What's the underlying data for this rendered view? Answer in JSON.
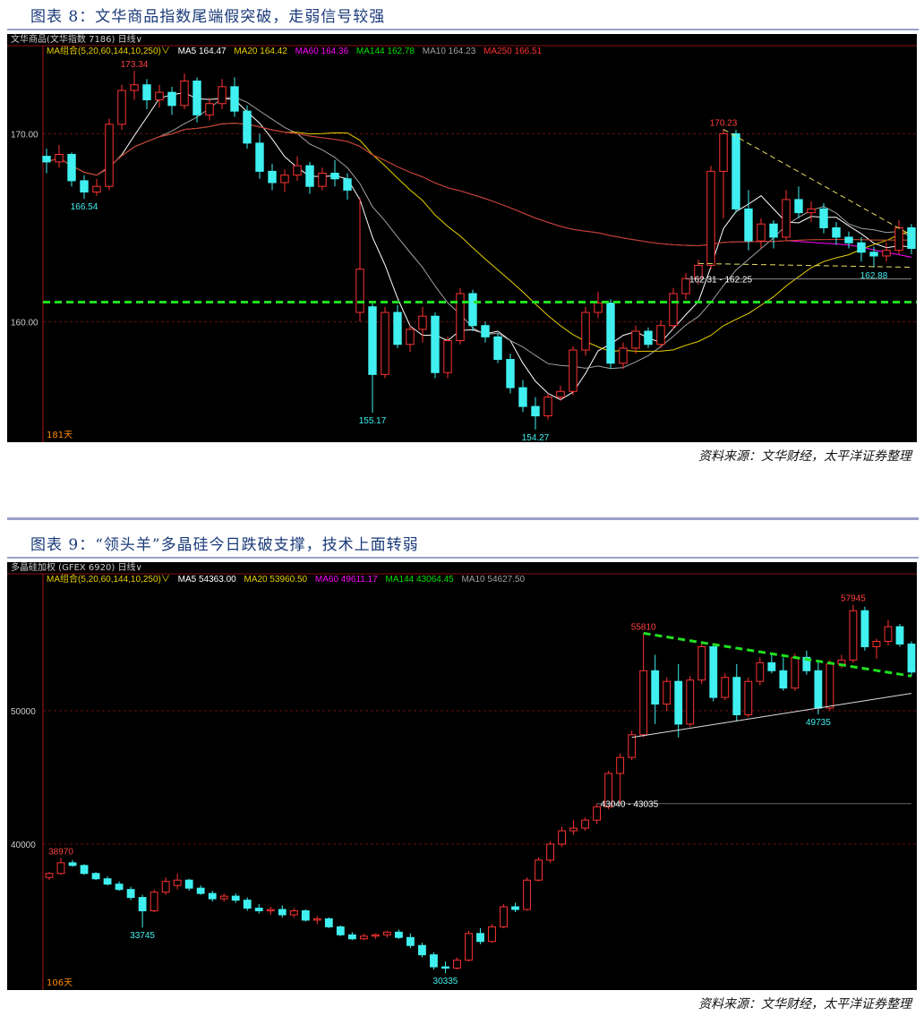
{
  "figures": [
    {
      "title": "图表 8：文华商品指数尾端假突破，走弱信号较强",
      "header": "文华商品(文华指数 7186)  日线∨",
      "ma_combo": "MA组合(5,20,60,144,10,250)∨",
      "ma_values": [
        {
          "label": "MA5 164.47",
          "color": "#ffffff"
        },
        {
          "label": "MA20 164.42",
          "color": "#e8d000"
        },
        {
          "label": "MA60 164.36",
          "color": "#ff00ff"
        },
        {
          "label": "MA144 162.78",
          "color": "#00e000"
        },
        {
          "label": "MA10 164.23",
          "color": "#a0a0a0"
        },
        {
          "label": "MA250 166.51",
          "color": "#ff3030"
        }
      ],
      "days_label": "181天",
      "source": "资料来源：文华财经，太平洋证券整理"
    },
    {
      "title": "图表 9：“领头羊”多晶硅今日跌破支撑，技术上面转弱",
      "header": "多晶硅加权 (GFEX 6920)  日线∨",
      "ma_combo": "MA组合(5,20,60,144,10,250)∨",
      "ma_values": [
        {
          "label": "MA5 54363.00",
          "color": "#ffffff"
        },
        {
          "label": "MA20 53960.50",
          "color": "#e8d000"
        },
        {
          "label": "MA60 49611.17",
          "color": "#ff00ff"
        },
        {
          "label": "MA144 43064.45",
          "color": "#00e000"
        },
        {
          "label": "MA10 54627.50",
          "color": "#a0a0a0"
        }
      ],
      "days_label": "106天",
      "source": "资料来源：文华财经，太平洋证券整理"
    }
  ],
  "chart_data": [
    {
      "type": "candlestick",
      "ylim": [
        153.6,
        175.3
      ],
      "yticks": [
        {
          "value": 170,
          "label": "170.00"
        },
        {
          "value": 160,
          "label": "160.00"
        }
      ],
      "up_color": "#ff3232",
      "down_color": "#40f0f0",
      "ohlc": [
        [
          168.8,
          169.2,
          167.9,
          168.5
        ],
        [
          168.5,
          169.4,
          168.2,
          168.9
        ],
        [
          168.9,
          169.0,
          167.2,
          167.5
        ],
        [
          167.5,
          167.8,
          166.54,
          166.9
        ],
        [
          166.9,
          167.6,
          166.7,
          167.2
        ],
        [
          167.2,
          170.8,
          167.0,
          170.5
        ],
        [
          170.5,
          172.6,
          170.2,
          172.3
        ],
        [
          172.3,
          173.34,
          171.8,
          172.6
        ],
        [
          172.6,
          172.9,
          171.3,
          171.8
        ],
        [
          171.8,
          172.6,
          171.4,
          172.2
        ],
        [
          172.2,
          172.5,
          171.0,
          171.5
        ],
        [
          171.5,
          173.2,
          171.3,
          172.8
        ],
        [
          172.8,
          173.0,
          170.6,
          171.0
        ],
        [
          171.0,
          171.9,
          170.7,
          171.6
        ],
        [
          171.6,
          172.9,
          171.3,
          172.5
        ],
        [
          172.5,
          173.0,
          170.9,
          171.2
        ],
        [
          171.2,
          171.5,
          169.2,
          169.5
        ],
        [
          169.5,
          170.0,
          167.6,
          168.0
        ],
        [
          168.0,
          168.4,
          167.0,
          167.4
        ],
        [
          167.4,
          168.1,
          166.9,
          167.8
        ],
        [
          167.8,
          168.8,
          167.5,
          168.3
        ],
        [
          168.3,
          168.5,
          166.8,
          167.2
        ],
        [
          167.2,
          168.2,
          167.0,
          167.9
        ],
        [
          167.9,
          168.6,
          167.2,
          167.6
        ],
        [
          167.6,
          167.9,
          166.5,
          167.0
        ],
        [
          160.5,
          166.6,
          160.0,
          162.8
        ],
        [
          160.8,
          161.0,
          155.17,
          157.2
        ],
        [
          157.2,
          160.8,
          157.0,
          160.5
        ],
        [
          160.5,
          160.9,
          158.6,
          158.8
        ],
        [
          158.8,
          159.8,
          158.4,
          159.6
        ],
        [
          159.6,
          160.8,
          158.9,
          160.3
        ],
        [
          160.3,
          160.5,
          157.0,
          157.3
        ],
        [
          157.3,
          159.2,
          157.0,
          159.0
        ],
        [
          159.0,
          161.8,
          158.8,
          161.5
        ],
        [
          161.5,
          161.7,
          159.5,
          159.8
        ],
        [
          159.8,
          160.0,
          158.9,
          159.2
        ],
        [
          159.2,
          159.4,
          157.8,
          158.0
        ],
        [
          158.0,
          158.3,
          156.2,
          156.5
        ],
        [
          156.5,
          156.9,
          155.2,
          155.5
        ],
        [
          155.5,
          156.0,
          154.27,
          155.0
        ],
        [
          155.0,
          156.2,
          154.8,
          156.0
        ],
        [
          156.0,
          156.6,
          155.8,
          156.3
        ],
        [
          156.3,
          158.7,
          156.1,
          158.5
        ],
        [
          158.5,
          160.8,
          158.2,
          160.5
        ],
        [
          160.5,
          161.6,
          160.2,
          161.0
        ],
        [
          161.0,
          161.2,
          157.5,
          157.8
        ],
        [
          157.8,
          158.9,
          157.5,
          158.6
        ],
        [
          158.6,
          159.8,
          158.3,
          159.5
        ],
        [
          159.5,
          159.7,
          158.6,
          158.8
        ],
        [
          158.8,
          160.1,
          158.6,
          159.8
        ],
        [
          159.8,
          161.8,
          159.6,
          161.5
        ],
        [
          161.5,
          162.6,
          161.2,
          162.3
        ],
        [
          162.3,
          163.3,
          162.0,
          163.0
        ],
        [
          163.0,
          168.3,
          162.8,
          168.0
        ],
        [
          168.0,
          170.23,
          165.5,
          170.0
        ],
        [
          170.0,
          170.2,
          165.8,
          166.0
        ],
        [
          166.0,
          167.0,
          163.8,
          164.3
        ],
        [
          164.3,
          165.5,
          163.9,
          165.2
        ],
        [
          165.2,
          165.4,
          163.9,
          164.5
        ],
        [
          164.5,
          167.0,
          164.3,
          166.5
        ],
        [
          166.5,
          167.2,
          165.5,
          165.8
        ],
        [
          165.8,
          166.4,
          165.3,
          166.0
        ],
        [
          166.0,
          166.3,
          164.7,
          165.0
        ],
        [
          165.0,
          165.3,
          164.1,
          164.5
        ],
        [
          164.5,
          164.8,
          163.9,
          164.2
        ],
        [
          164.2,
          164.5,
          163.2,
          163.7
        ],
        [
          163.7,
          164.0,
          162.88,
          163.5
        ],
        [
          163.5,
          164.2,
          163.2,
          163.8
        ],
        [
          163.8,
          165.4,
          163.6,
          165.0
        ],
        [
          165.0,
          165.2,
          163.6,
          163.9
        ]
      ],
      "annotations": [
        {
          "text": "173.34",
          "at": 7,
          "value": 173.34,
          "pos": "above",
          "color": "#ff4040"
        },
        {
          "text": "166.54",
          "at": 3,
          "value": 166.54,
          "pos": "below",
          "color": "#40f0f0"
        },
        {
          "text": "155.17",
          "at": 26,
          "value": 155.17,
          "pos": "below",
          "color": "#40f0f0"
        },
        {
          "text": "154.27",
          "at": 39,
          "value": 154.27,
          "pos": "below",
          "color": "#40f0f0"
        },
        {
          "text": "170.23",
          "at": 54,
          "value": 170.23,
          "pos": "above",
          "color": "#ff4040"
        },
        {
          "text": "162.88",
          "at": 66,
          "value": 162.88,
          "pos": "below",
          "color": "#40f0f0"
        },
        {
          "text": "162.31 - 162.25",
          "at": 51,
          "value": 162.28,
          "pos": "right",
          "color": "#ffffff"
        }
      ],
      "lines": [
        {
          "from": [
            0,
            161.05
          ],
          "to": [
            69,
            161.05
          ],
          "color": "#20e020",
          "style": "dashed-thick"
        },
        {
          "from": [
            54,
            170.23
          ],
          "to": [
            69,
            164.6
          ],
          "color": "#e8e060",
          "style": "dashed"
        },
        {
          "from": [
            52,
            163.1
          ],
          "to": [
            69,
            162.9
          ],
          "color": "#e8e060",
          "style": "dashed"
        },
        {
          "from": [
            51,
            162.28
          ],
          "to": [
            69,
            162.28
          ],
          "color": "#888888",
          "style": "solid"
        }
      ],
      "moving_averages": [
        {
          "period": 5,
          "color": "#ffffff"
        },
        {
          "period": 10,
          "color": "#a0a0a0"
        },
        {
          "period": 20,
          "color": "#e8d000"
        },
        {
          "period": 60,
          "color": "#ff00ff"
        },
        {
          "period": 144,
          "color": "#00c000"
        },
        {
          "period": 250,
          "color": "#d03030"
        }
      ]
    },
    {
      "type": "candlestick",
      "ylim": [
        29060,
        61140
      ],
      "yticks": [
        {
          "value": 50000,
          "label": "50000"
        },
        {
          "value": 40000,
          "label": "40000"
        }
      ],
      "up_color": "#ff3232",
      "down_color": "#40f0f0",
      "ohlc": [
        [
          37500,
          37900,
          37300,
          37800
        ],
        [
          37800,
          38970,
          37700,
          38600
        ],
        [
          38600,
          38800,
          38300,
          38400
        ],
        [
          38400,
          38500,
          37700,
          37800
        ],
        [
          37800,
          37900,
          37300,
          37400
        ],
        [
          37400,
          37600,
          36900,
          37000
        ],
        [
          37000,
          37200,
          36500,
          36600
        ],
        [
          36600,
          36800,
          35800,
          36000
        ],
        [
          36000,
          36200,
          33745,
          35000
        ],
        [
          35000,
          36600,
          34900,
          36400
        ],
        [
          36400,
          37500,
          36200,
          37200
        ],
        [
          36900,
          37800,
          36600,
          37300
        ],
        [
          37300,
          37400,
          36500,
          36700
        ],
        [
          36700,
          36900,
          36200,
          36300
        ],
        [
          36300,
          36500,
          35700,
          35900
        ],
        [
          35900,
          36300,
          35700,
          36100
        ],
        [
          36100,
          36300,
          35600,
          35800
        ],
        [
          35800,
          36000,
          35000,
          35200
        ],
        [
          35200,
          35500,
          34800,
          35000
        ],
        [
          35000,
          35300,
          34700,
          35100
        ],
        [
          35100,
          35400,
          34500,
          34700
        ],
        [
          34700,
          35200,
          34500,
          35000
        ],
        [
          35000,
          35100,
          34200,
          34300
        ],
        [
          34300,
          34600,
          34000,
          34400
        ],
        [
          34400,
          34500,
          33700,
          33800
        ],
        [
          33800,
          33900,
          33100,
          33200
        ],
        [
          33200,
          33400,
          32800,
          32900
        ],
        [
          32900,
          33300,
          32800,
          33100
        ],
        [
          33100,
          33300,
          32900,
          33200
        ],
        [
          33200,
          33500,
          33000,
          33400
        ],
        [
          33400,
          33600,
          32900,
          33000
        ],
        [
          33000,
          33300,
          32200,
          32400
        ],
        [
          32400,
          32600,
          31500,
          31700
        ],
        [
          31700,
          31900,
          30600,
          30800
        ],
        [
          30800,
          31200,
          30335,
          30700
        ],
        [
          30700,
          31500,
          30600,
          31300
        ],
        [
          31300,
          33500,
          31200,
          33300
        ],
        [
          33300,
          33700,
          32500,
          32700
        ],
        [
          32700,
          34000,
          32600,
          33800
        ],
        [
          33800,
          35500,
          33700,
          35300
        ],
        [
          35300,
          35600,
          34900,
          35100
        ],
        [
          35100,
          37500,
          35000,
          37300
        ],
        [
          37300,
          39000,
          37200,
          38800
        ],
        [
          38800,
          40200,
          38600,
          40000
        ],
        [
          40000,
          41300,
          39800,
          41000
        ],
        [
          41000,
          41800,
          40700,
          41200
        ],
        [
          41200,
          42000,
          41000,
          41800
        ],
        [
          41800,
          43040,
          41500,
          42800
        ],
        [
          42800,
          45500,
          42600,
          45300
        ],
        [
          45300,
          46800,
          43035,
          46500
        ],
        [
          46500,
          48500,
          46300,
          48200
        ],
        [
          48200,
          55810,
          48000,
          53000
        ],
        [
          53000,
          54200,
          49000,
          50500
        ],
        [
          50500,
          52500,
          50000,
          52200
        ],
        [
          52200,
          53500,
          48000,
          49000
        ],
        [
          49000,
          52600,
          48800,
          52300
        ],
        [
          52300,
          55200,
          52000,
          54800
        ],
        [
          54800,
          55000,
          50700,
          51000
        ],
        [
          51000,
          52800,
          50800,
          52500
        ],
        [
          52500,
          53500,
          49200,
          49700
        ],
        [
          49700,
          52500,
          49500,
          52200
        ],
        [
          52200,
          54000,
          51900,
          53600
        ],
        [
          53600,
          54300,
          52800,
          53000
        ],
        [
          53000,
          54000,
          51500,
          51700
        ],
        [
          51700,
          54300,
          51500,
          54000
        ],
        [
          54000,
          54500,
          52700,
          53000
        ],
        [
          53000,
          53800,
          49735,
          50200
        ],
        [
          50200,
          53800,
          50000,
          53500
        ],
        [
          53500,
          54200,
          53200,
          53800
        ],
        [
          53800,
          57945,
          53600,
          57500
        ],
        [
          57500,
          57800,
          54500,
          54800
        ],
        [
          54800,
          55400,
          53900,
          55200
        ],
        [
          55200,
          56800,
          54900,
          56300
        ],
        [
          56300,
          56500,
          54800,
          55000
        ],
        [
          55000,
          55200,
          52600,
          52900
        ]
      ],
      "annotations": [
        {
          "text": "38970",
          "at": 1,
          "value": 38970,
          "pos": "above",
          "color": "#ff4040"
        },
        {
          "text": "33745",
          "at": 8,
          "value": 33745,
          "pos": "below",
          "color": "#40f0f0"
        },
        {
          "text": "30335",
          "at": 34,
          "value": 30335,
          "pos": "below",
          "color": "#40f0f0"
        },
        {
          "text": "55810",
          "at": 51,
          "value": 55810,
          "pos": "above",
          "color": "#ff4040"
        },
        {
          "text": "57945",
          "at": 69,
          "value": 57945,
          "pos": "above",
          "color": "#ff4040"
        },
        {
          "text": "49735",
          "at": 66,
          "value": 49735,
          "pos": "below",
          "color": "#40f0f0"
        },
        {
          "text": "43040 - 43035",
          "at": 47,
          "value": 43040,
          "pos": "right",
          "color": "#ffffff"
        }
      ],
      "lines": [
        {
          "from": [
            51,
            55810
          ],
          "to": [
            74,
            52600
          ],
          "color": "#20e020",
          "style": "dashed-thick"
        },
        {
          "from": [
            50,
            48000
          ],
          "to": [
            74,
            51300
          ],
          "color": "#e0e0e0",
          "style": "solid"
        },
        {
          "from": [
            47,
            43040
          ],
          "to": [
            74,
            43040
          ],
          "color": "#666666",
          "style": "solid"
        }
      ],
      "moving_averages": []
    }
  ]
}
